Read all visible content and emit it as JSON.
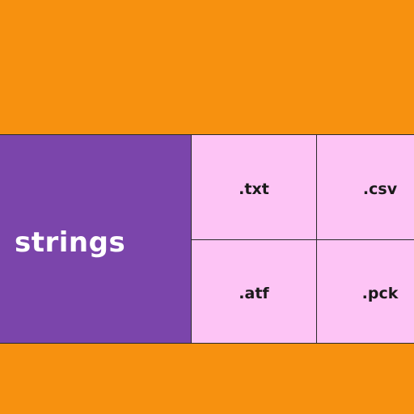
{
  "main": {
    "label": "strings"
  },
  "formats": [
    {
      "label": ".txt"
    },
    {
      "label": ".csv"
    },
    {
      "label": ".atf"
    },
    {
      "label": ".pck"
    }
  ],
  "colors": {
    "background": "#f7910f",
    "main_cell": "#7b45ab",
    "format_cell": "#fdc4f5",
    "text_on_main": "#ffffff",
    "text_on_format": "#1a1a1a"
  }
}
